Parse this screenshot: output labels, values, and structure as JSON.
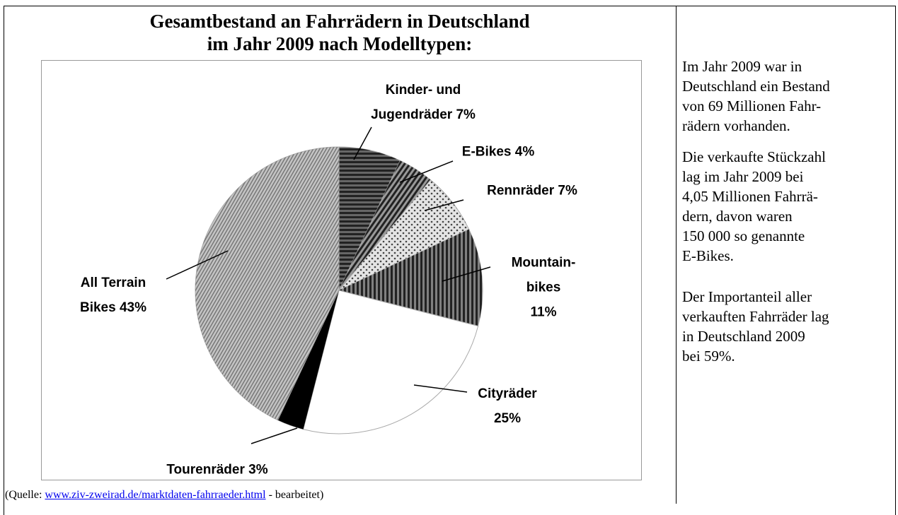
{
  "chart_data": {
    "type": "pie",
    "title": [
      "Gesamtbestand an Fahrrädern in Deutschland",
      "im Jahr 2009 nach Modelltypen:"
    ],
    "categories": [
      "Kinder- und Jugendräder",
      "E-Bikes",
      "Rennräder",
      "Mountain-bikes",
      "Cityräder",
      "Tourenräder",
      "All Terrain Bikes"
    ],
    "values": [
      7,
      4,
      7,
      11,
      25,
      3,
      43
    ],
    "value_labels": [
      "7%",
      "4%",
      "7%",
      "11%",
      "25%",
      "3%",
      "43%"
    ],
    "colors": [
      "#666666",
      "#999999",
      "#e4e4e4",
      "#808080",
      "#ffffff",
      "#111111",
      "#c4c4c4"
    ]
  },
  "source": {
    "prefix": "(Quelle: ",
    "link": "www.ziv-zweirad.de/marktdaten-fahrraeder.html",
    "suffix": " - bearbeitet)"
  },
  "sidebar": [
    [
      "Im Jahr 2009 war in",
      "Deutschland ein Bestand",
      "von 69 Millionen Fahr-",
      "rädern vorhanden."
    ],
    [
      "Die verkaufte Stückzahl",
      "lag im Jahr 2009 bei",
      "4,05 Millionen Fahrrä-",
      "dern, davon waren",
      "150 000 so genannte",
      "E-Bikes."
    ],
    [
      "Der Importanteil aller",
      "verkauften Fahrräder lag",
      "in Deutschland 2009",
      "bei 59%."
    ]
  ]
}
